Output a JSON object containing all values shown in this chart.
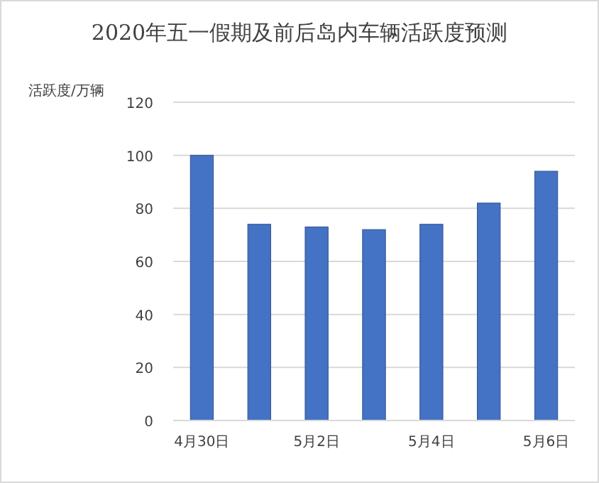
{
  "chart_data": {
    "type": "bar",
    "title": "2020年五一假期及前后岛内车辆活跃度预测",
    "ylabel": "活跃度/万辆",
    "categories": [
      "4月30日",
      null,
      "5月2日",
      null,
      "5月4日",
      null,
      "5月6日"
    ],
    "values": [
      100,
      74,
      73,
      72,
      74,
      82,
      94
    ],
    "color": "#4472c4",
    "ylim": [
      0,
      120
    ],
    "yticks": [
      0,
      20,
      40,
      60,
      80,
      100,
      120
    ],
    "grid": "y"
  }
}
